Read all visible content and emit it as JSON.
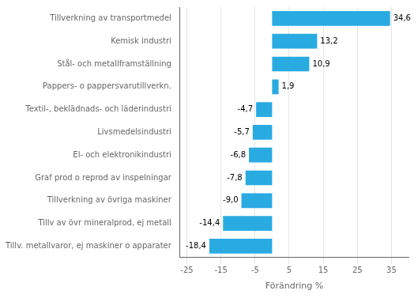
{
  "chart_data": {
    "type": "bar",
    "orientation": "horizontal",
    "categories": [
      "Tillv. metallvaror, ej maskiner o apparater",
      "Tillv av övr mineralprod, ej metall",
      "Tillverkning av övriga maskiner",
      "Graf prod o reprod av inspelningar",
      "El- och elektronikindustri",
      "Livsmedelsindustri",
      "Textil-, beklädnads- och läderindustri",
      "Pappers- o pappersvarutillverkn.",
      "Stål- och metallframställning",
      "Kemisk industri",
      "Tillverkning av transportmedel"
    ],
    "values": [
      -18.4,
      -14.4,
      -9.0,
      -7.8,
      -6.8,
      -5.7,
      -4.7,
      1.9,
      10.9,
      13.2,
      34.6
    ],
    "value_labels": [
      "-18,4",
      "-14,4",
      "-9,0",
      "-7,8",
      "-6,8",
      "-5,7",
      "-4,7",
      "1,9",
      "10,9",
      "13,2",
      "34,6"
    ],
    "color": "#29abe2",
    "xlabel": "Förändring %",
    "xlim": [
      -27,
      40
    ],
    "xticks": [
      -25,
      -15,
      -5,
      5,
      15,
      25,
      35
    ],
    "grid": true,
    "data_labels": true
  }
}
